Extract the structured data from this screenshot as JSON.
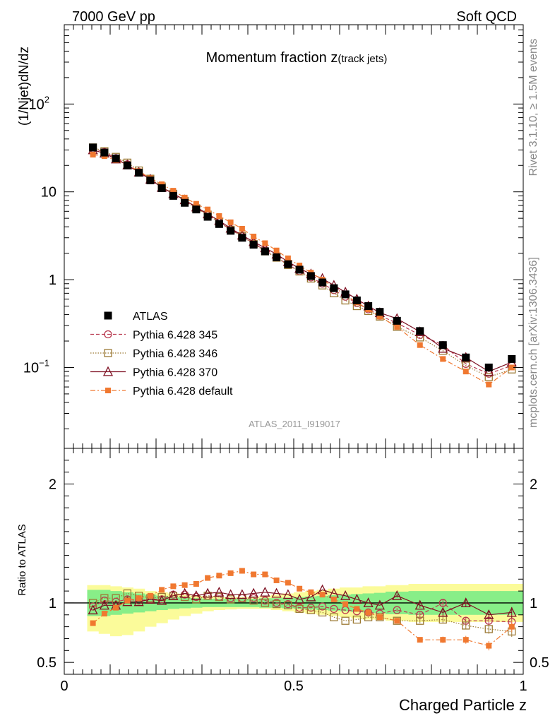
{
  "header": {
    "left_label": "7000 GeV pp",
    "right_label": "Soft QCD",
    "plot_title": "Momentum fraction z",
    "plot_title_sub": "(track jets)",
    "analysis_id": "ATLAS_2011_I919017",
    "side_rivet": "Rivet 3.1.10, ≥ 1.5M events",
    "side_mcplots": "mcplots.cern.ch [arXiv:1306.3436]"
  },
  "colors": {
    "data": "#000000",
    "p345": "#b8394f",
    "p346": "#9c7a35",
    "p370": "#7e1022",
    "pdefault": "#f07830",
    "band_inner": "#88ee88",
    "band_outer": "#fbfb9a"
  },
  "chart_data": [
    {
      "type": "scatter",
      "title": "Momentum fraction z(track jets)",
      "xlabel": "Charged Particle z",
      "ylabel": "(1/Njet)dN/dz",
      "yscale": "log",
      "xlim": [
        0,
        1
      ],
      "ylim": [
        0.012,
        800
      ],
      "xticks": [
        {
          "v": 0,
          "label": "0"
        },
        {
          "v": 0.5,
          "label": "0.5"
        },
        {
          "v": 1,
          "label": "1"
        }
      ],
      "yticks": [
        {
          "v": 0.1,
          "label": "10",
          "sup": "−1"
        },
        {
          "v": 1,
          "label": "1",
          "sup": ""
        },
        {
          "v": 10,
          "label": "10",
          "sup": ""
        },
        {
          "v": 100,
          "label": "10",
          "sup": "2"
        }
      ],
      "x": [
        0.0625,
        0.0875,
        0.1125,
        0.1375,
        0.1625,
        0.1875,
        0.2125,
        0.2375,
        0.2625,
        0.2875,
        0.3125,
        0.3375,
        0.3625,
        0.3875,
        0.4125,
        0.4375,
        0.4625,
        0.4875,
        0.5125,
        0.5375,
        0.5625,
        0.5875,
        0.6125,
        0.6375,
        0.6625,
        0.6875,
        0.725,
        0.775,
        0.825,
        0.875,
        0.925,
        0.975
      ],
      "series": [
        {
          "name": "ATLAS",
          "key": "data",
          "values": [
            32,
            28,
            24,
            20,
            16.5,
            13.5,
            11,
            9,
            7.5,
            6.3,
            5.2,
            4.3,
            3.6,
            3.0,
            2.5,
            2.1,
            1.8,
            1.5,
            1.3,
            1.1,
            0.93,
            0.8,
            0.68,
            0.58,
            0.5,
            0.43,
            0.34,
            0.26,
            0.18,
            0.13,
            0.1,
            0.125
          ]
        },
        {
          "name": "Pythia 6.428 345",
          "key": "p345",
          "values": [
            31,
            28.5,
            24.2,
            20.6,
            16.8,
            13.9,
            11.3,
            9.6,
            8.0,
            6.6,
            5.5,
            4.5,
            3.75,
            3.12,
            2.6,
            2.15,
            1.8,
            1.48,
            1.25,
            1.06,
            0.9,
            0.76,
            0.64,
            0.54,
            0.46,
            0.39,
            0.32,
            0.235,
            0.18,
            0.11,
            0.085,
            0.105
          ]
        },
        {
          "name": "Pythia 6.428 346",
          "key": "p346",
          "values": [
            32,
            29,
            25,
            21.5,
            17.5,
            14.1,
            11.5,
            9.5,
            7.9,
            6.5,
            5.5,
            4.5,
            3.7,
            3.12,
            2.55,
            2.1,
            1.78,
            1.47,
            1.24,
            1.03,
            0.86,
            0.7,
            0.58,
            0.5,
            0.44,
            0.38,
            0.29,
            0.22,
            0.155,
            0.105,
            0.078,
            0.095
          ]
        },
        {
          "name": "Pythia 6.428 370",
          "key": "p370",
          "values": [
            30,
            27.5,
            23.6,
            20.2,
            16.7,
            13.9,
            11.2,
            9.5,
            8.1,
            6.7,
            5.6,
            4.7,
            3.85,
            3.2,
            2.7,
            2.3,
            1.95,
            1.6,
            1.34,
            1.16,
            1.03,
            0.86,
            0.72,
            0.6,
            0.5,
            0.42,
            0.36,
            0.255,
            0.165,
            0.13,
            0.09,
            0.115
          ]
        },
        {
          "name": "Pythia 6.428 default",
          "key": "pdefault",
          "values": [
            26.5,
            25.5,
            23,
            20.4,
            17.2,
            14.3,
            12.2,
            10.3,
            8.6,
            7.3,
            6.3,
            5.3,
            4.5,
            3.8,
            3.1,
            2.6,
            2.15,
            1.75,
            1.45,
            1.2,
            1.0,
            0.82,
            0.67,
            0.55,
            0.46,
            0.38,
            0.29,
            0.18,
            0.125,
            0.09,
            0.064,
            0.1
          ]
        }
      ]
    },
    {
      "type": "scatter",
      "title": "",
      "xlabel": "Charged Particle z",
      "ylabel": "Ratio to ATLAS",
      "yscale": "linear",
      "xlim": [
        0,
        1
      ],
      "ylim": [
        0.4,
        2.3
      ],
      "xticks": [
        {
          "v": 0,
          "label": "0"
        },
        {
          "v": 0.5,
          "label": "0.5"
        },
        {
          "v": 1,
          "label": "1"
        }
      ],
      "yticks": [
        {
          "v": 0.5,
          "label": "0.5"
        },
        {
          "v": 1,
          "label": "1"
        },
        {
          "v": 2,
          "label": "2"
        }
      ],
      "band_edges": [
        0.05,
        0.075,
        0.1,
        0.125,
        0.15,
        0.175,
        0.2,
        0.225,
        0.25,
        0.275,
        0.3,
        0.325,
        0.35,
        0.375,
        0.4,
        0.425,
        0.45,
        0.475,
        0.5,
        0.525,
        0.55,
        0.575,
        0.6,
        0.625,
        0.65,
        0.675,
        0.7,
        0.75,
        0.8,
        0.85,
        0.9,
        0.95,
        1.0
      ],
      "band_inner_half": [
        0.11,
        0.11,
        0.1,
        0.09,
        0.08,
        0.07,
        0.06,
        0.05,
        0.045,
        0.04,
        0.035,
        0.035,
        0.035,
        0.035,
        0.035,
        0.04,
        0.04,
        0.045,
        0.05,
        0.055,
        0.06,
        0.065,
        0.07,
        0.075,
        0.08,
        0.085,
        0.095,
        0.1,
        0.1,
        0.1,
        0.1,
        0.1
      ],
      "band_outer_upper": [
        0.15,
        0.15,
        0.14,
        0.13,
        0.12,
        0.1,
        0.09,
        0.08,
        0.07,
        0.06,
        0.055,
        0.05,
        0.05,
        0.05,
        0.05,
        0.06,
        0.07,
        0.08,
        0.09,
        0.1,
        0.11,
        0.12,
        0.13,
        0.13,
        0.14,
        0.14,
        0.15,
        0.16,
        0.16,
        0.16,
        0.16,
        0.16
      ],
      "band_outer_lower": [
        0.24,
        0.26,
        0.28,
        0.27,
        0.24,
        0.2,
        0.17,
        0.14,
        0.11,
        0.09,
        0.07,
        0.06,
        0.055,
        0.05,
        0.05,
        0.05,
        0.06,
        0.07,
        0.08,
        0.09,
        0.1,
        0.11,
        0.12,
        0.13,
        0.14,
        0.14,
        0.15,
        0.16,
        0.16,
        0.16,
        0.16,
        0.16
      ],
      "x": [
        0.0625,
        0.0875,
        0.1125,
        0.1375,
        0.1625,
        0.1875,
        0.2125,
        0.2375,
        0.2625,
        0.2875,
        0.3125,
        0.3375,
        0.3625,
        0.3875,
        0.4125,
        0.4375,
        0.4625,
        0.4875,
        0.5125,
        0.5375,
        0.5625,
        0.5875,
        0.6125,
        0.6375,
        0.6625,
        0.6875,
        0.725,
        0.775,
        0.825,
        0.875,
        0.925,
        0.975
      ],
      "series": [
        {
          "name": "Pythia 6.428 345",
          "key": "p345",
          "values": [
            0.97,
            1.02,
            1.01,
            1.03,
            1.02,
            1.03,
            1.03,
            1.07,
            1.07,
            1.05,
            1.06,
            1.05,
            1.04,
            1.04,
            1.04,
            1.02,
            1.0,
            0.99,
            0.96,
            0.96,
            0.97,
            0.95,
            0.94,
            0.93,
            0.92,
            0.91,
            0.94,
            0.9,
            1.0,
            0.85,
            0.85,
            0.84
          ]
        },
        {
          "name": "Pythia 6.428 346",
          "key": "p346",
          "values": [
            1.0,
            1.04,
            1.04,
            1.08,
            1.06,
            1.04,
            1.05,
            1.06,
            1.05,
            1.03,
            1.06,
            1.05,
            1.03,
            1.04,
            1.02,
            1.0,
            0.99,
            0.98,
            0.95,
            0.94,
            0.92,
            0.88,
            0.85,
            0.86,
            0.88,
            0.88,
            0.85,
            0.85,
            0.86,
            0.81,
            0.78,
            0.76
          ]
        },
        {
          "name": "Pythia 6.428 370",
          "key": "p370",
          "values": [
            0.94,
            0.98,
            0.98,
            1.01,
            1.01,
            1.03,
            1.02,
            1.06,
            1.08,
            1.06,
            1.08,
            1.09,
            1.07,
            1.07,
            1.08,
            1.09,
            1.08,
            1.07,
            1.03,
            1.05,
            1.11,
            1.08,
            1.06,
            1.03,
            1.0,
            0.98,
            1.06,
            0.98,
            0.92,
            1.0,
            0.9,
            0.92
          ]
        },
        {
          "name": "Pythia 6.428 default",
          "key": "pdefault",
          "values": [
            0.83,
            0.91,
            0.96,
            1.02,
            1.04,
            1.06,
            1.11,
            1.14,
            1.15,
            1.16,
            1.21,
            1.23,
            1.25,
            1.27,
            1.24,
            1.24,
            1.19,
            1.17,
            1.12,
            1.09,
            1.07,
            1.03,
            0.99,
            0.95,
            0.92,
            0.88,
            0.85,
            0.69,
            0.69,
            0.69,
            0.64,
            0.8
          ]
        }
      ]
    }
  ]
}
